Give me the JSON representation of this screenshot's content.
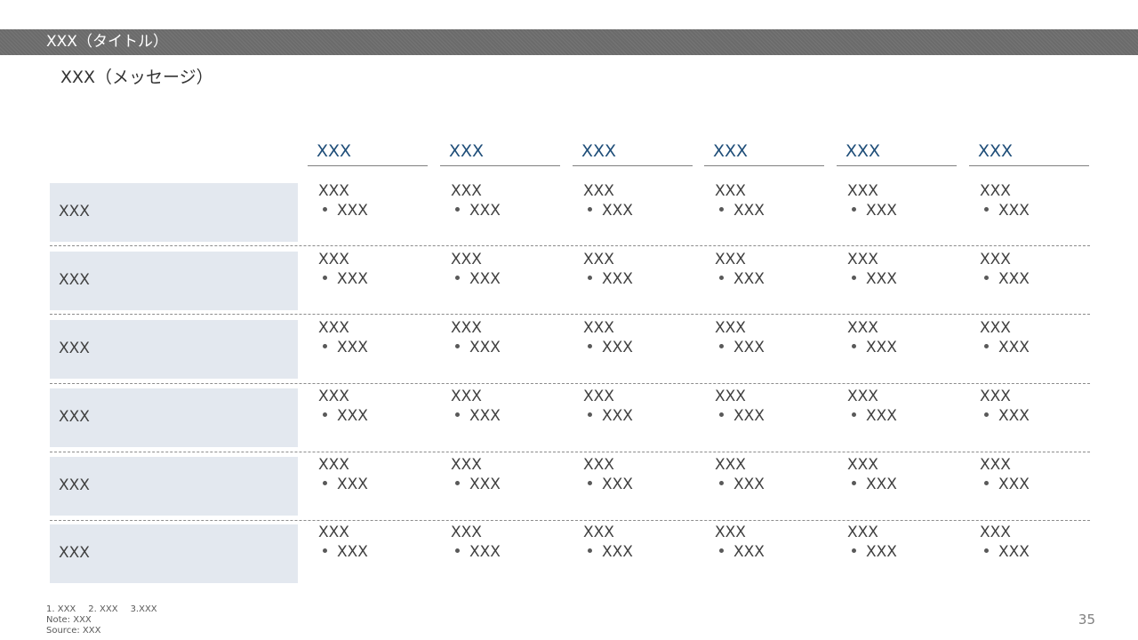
{
  "slide": {
    "title": "XXX（タイトル）",
    "message": "XXX（メッセージ）",
    "page_number": "35"
  },
  "table": {
    "columns": [
      "XXX",
      "XXX",
      "XXX",
      "XXX",
      "XXX",
      "XXX"
    ],
    "rows": [
      {
        "label": "XXX",
        "cells": [
          {
            "text": "XXX",
            "bullet": "XXX"
          },
          {
            "text": "XXX",
            "bullet": "XXX"
          },
          {
            "text": "XXX",
            "bullet": "XXX"
          },
          {
            "text": "XXX",
            "bullet": "XXX"
          },
          {
            "text": "XXX",
            "bullet": "XXX"
          },
          {
            "text": "XXX",
            "bullet": "XXX"
          }
        ]
      },
      {
        "label": "XXX",
        "cells": [
          {
            "text": "XXX",
            "bullet": "XXX"
          },
          {
            "text": "XXX",
            "bullet": "XXX"
          },
          {
            "text": "XXX",
            "bullet": "XXX"
          },
          {
            "text": "XXX",
            "bullet": "XXX"
          },
          {
            "text": "XXX",
            "bullet": "XXX"
          },
          {
            "text": "XXX",
            "bullet": "XXX"
          }
        ]
      },
      {
        "label": "XXX",
        "cells": [
          {
            "text": "XXX",
            "bullet": "XXX"
          },
          {
            "text": "XXX",
            "bullet": "XXX"
          },
          {
            "text": "XXX",
            "bullet": "XXX"
          },
          {
            "text": "XXX",
            "bullet": "XXX"
          },
          {
            "text": "XXX",
            "bullet": "XXX"
          },
          {
            "text": "XXX",
            "bullet": "XXX"
          }
        ]
      },
      {
        "label": "XXX",
        "cells": [
          {
            "text": "XXX",
            "bullet": "XXX"
          },
          {
            "text": "XXX",
            "bullet": "XXX"
          },
          {
            "text": "XXX",
            "bullet": "XXX"
          },
          {
            "text": "XXX",
            "bullet": "XXX"
          },
          {
            "text": "XXX",
            "bullet": "XXX"
          },
          {
            "text": "XXX",
            "bullet": "XXX"
          }
        ]
      },
      {
        "label": "XXX",
        "cells": [
          {
            "text": "XXX",
            "bullet": "XXX"
          },
          {
            "text": "XXX",
            "bullet": "XXX"
          },
          {
            "text": "XXX",
            "bullet": "XXX"
          },
          {
            "text": "XXX",
            "bullet": "XXX"
          },
          {
            "text": "XXX",
            "bullet": "XXX"
          },
          {
            "text": "XXX",
            "bullet": "XXX"
          }
        ]
      },
      {
        "label": "XXX",
        "cells": [
          {
            "text": "XXX",
            "bullet": "XXX"
          },
          {
            "text": "XXX",
            "bullet": "XXX"
          },
          {
            "text": "XXX",
            "bullet": "XXX"
          },
          {
            "text": "XXX",
            "bullet": "XXX"
          },
          {
            "text": "XXX",
            "bullet": "XXX"
          },
          {
            "text": "XXX",
            "bullet": "XXX"
          }
        ]
      }
    ]
  },
  "footnotes": {
    "references": [
      "1. XXX",
      "2. XXX",
      "3.XXX"
    ],
    "note": "Note: XXX",
    "source": "Source: XXX"
  },
  "colors": {
    "title_bar": "#6b6b6b",
    "column_header_text": "#1f4e79",
    "row_label_fill": "#e3e8ef",
    "body_text": "#404040"
  }
}
